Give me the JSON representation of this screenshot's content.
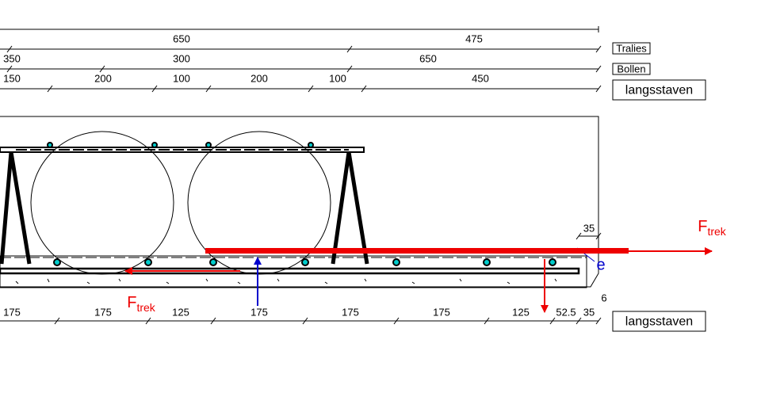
{
  "legend_boxes": {
    "tralies": "Tralies",
    "bollen": "Bollen",
    "langsstaven_top": "langsstaven",
    "langsstaven_bottom": "langsstaven"
  },
  "dimensions": {
    "tralies": [
      650,
      475
    ],
    "bollen": [
      350,
      300,
      650
    ],
    "langsstaven": [
      150,
      200,
      100,
      200,
      100,
      450
    ],
    "bottom": [
      175,
      175,
      125,
      175,
      175,
      175,
      125,
      52.5,
      35
    ]
  },
  "annotations": {
    "cover_width": 35,
    "cover_height": 6,
    "eccentricity": "e"
  },
  "forces": {
    "right": {
      "symbol": "F",
      "subscript": "trek"
    },
    "left": {
      "symbol": "F",
      "subscript": "trek"
    }
  }
}
